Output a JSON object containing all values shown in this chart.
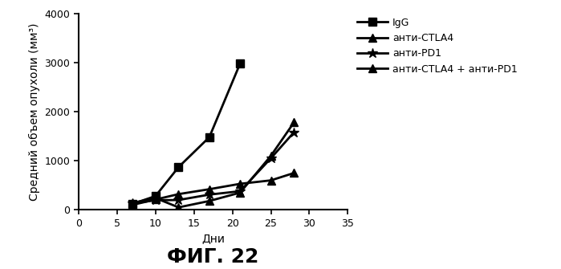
{
  "title": "ФИГ. 22",
  "xlabel": "Дни",
  "ylabel": "Средний объем опухоли (мм³)",
  "xlim": [
    0,
    35
  ],
  "ylim": [
    0,
    4000
  ],
  "xticks": [
    0,
    5,
    10,
    15,
    20,
    25,
    30,
    35
  ],
  "yticks": [
    0,
    1000,
    2000,
    3000,
    4000
  ],
  "series": [
    {
      "label": "IgG",
      "x": [
        7,
        10,
        13,
        17,
        21
      ],
      "y": [
        120,
        280,
        870,
        1480,
        2980
      ],
      "marker": "s",
      "linewidth": 2,
      "markersize": 7
    },
    {
      "label": "анти-CTLA4",
      "x": [
        7,
        10,
        13,
        17,
        21,
        25,
        28
      ],
      "y": [
        100,
        210,
        320,
        420,
        530,
        600,
        750
      ],
      "marker": "^",
      "linewidth": 2,
      "markersize": 7
    },
    {
      "label": "анти-PD1",
      "x": [
        7,
        10,
        13,
        17,
        21,
        25,
        28
      ],
      "y": [
        130,
        195,
        200,
        310,
        380,
        1050,
        1580
      ],
      "marker": "*",
      "linewidth": 2,
      "markersize": 9
    },
    {
      "label": "анти-CTLA4 + анти-PD1",
      "x": [
        7,
        10,
        13,
        17,
        21,
        25,
        28
      ],
      "y": [
        140,
        240,
        50,
        180,
        350,
        1100,
        1780
      ],
      "marker": "^",
      "linewidth": 2,
      "markersize": 7
    }
  ],
  "background_color": "#ffffff",
  "fig_title_fontsize": 18,
  "axis_label_fontsize": 10,
  "tick_label_fontsize": 9,
  "legend_fontsize": 9
}
